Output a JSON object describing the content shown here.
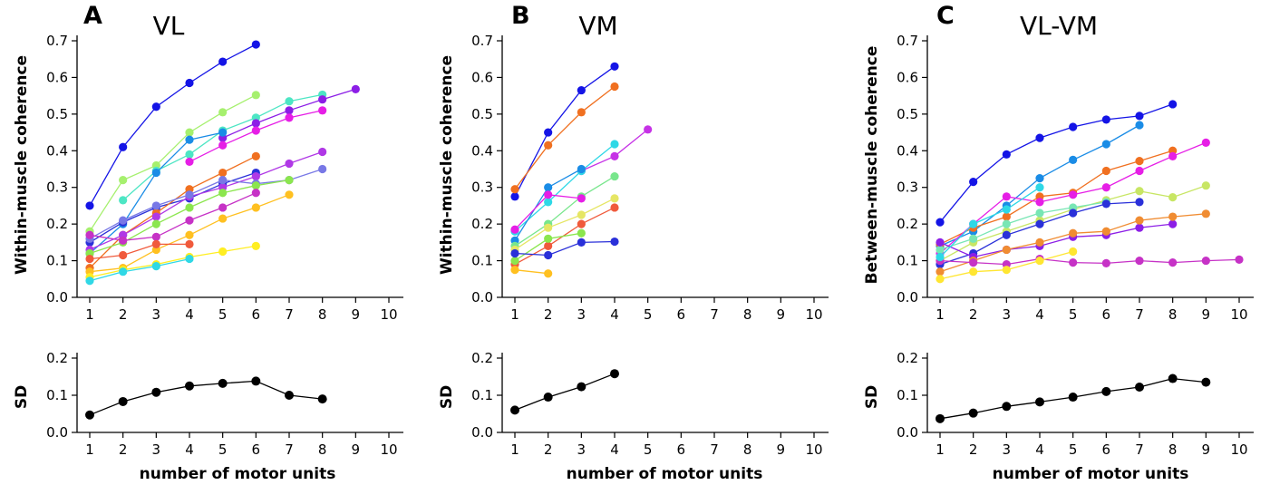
{
  "panels": [
    {
      "letter": "A",
      "title": "VL",
      "ylabel": "Within-muscle coherence",
      "xlabel": "",
      "sd_ylabel": "SD",
      "sd_xlabel": "number of motor units"
    },
    {
      "letter": "B",
      "title": "VM",
      "ylabel": "Within-muscle coherence",
      "xlabel": "",
      "sd_ylabel": "SD",
      "sd_xlabel": "number of motor units"
    },
    {
      "letter": "C",
      "title": "VL-VM",
      "ylabel": "Between-muscle coherence",
      "xlabel": "",
      "sd_ylabel": "SD",
      "sd_xlabel": "number of motor units"
    }
  ],
  "chart_data": [
    {
      "type": "line",
      "panel": "A",
      "role": "coherence",
      "ylabel": "Within-muscle coherence",
      "xlabel": "",
      "xlim": [
        1,
        10
      ],
      "ylim": [
        0,
        0.7
      ],
      "xticks": [
        "1",
        "2",
        "3",
        "4",
        "5",
        "6",
        "7",
        "8",
        "9",
        "10"
      ],
      "yticks": [
        "0.0",
        "0.1",
        "0.2",
        "0.3",
        "0.4",
        "0.5",
        "0.6",
        "0.7"
      ],
      "grid": false,
      "series": [
        {
          "color": "#1414e6",
          "x": [
            1,
            2,
            3,
            4,
            5,
            6
          ],
          "y": [
            0.25,
            0.41,
            0.52,
            0.585,
            0.643,
            0.69
          ]
        },
        {
          "color": "#a6f06e",
          "x": [
            1,
            2,
            3,
            4,
            5,
            6
          ],
          "y": [
            0.18,
            0.32,
            0.36,
            0.45,
            0.505,
            0.552
          ]
        },
        {
          "color": "#4de6c4",
          "x": [
            2,
            3,
            4,
            5,
            6,
            7,
            8
          ],
          "y": [
            0.265,
            0.345,
            0.39,
            0.455,
            0.49,
            0.535,
            0.553
          ]
        },
        {
          "color": "#8c1ee6",
          "x": [
            5,
            6,
            7,
            8,
            9
          ],
          "y": [
            0.435,
            0.475,
            0.51,
            0.54,
            0.568
          ]
        },
        {
          "color": "#e61ee6",
          "x": [
            4,
            5,
            6,
            7,
            8
          ],
          "y": [
            0.37,
            0.415,
            0.455,
            0.49,
            0.51
          ]
        },
        {
          "color": "#1a8ce6",
          "x": [
            1,
            2,
            3,
            4,
            5
          ],
          "y": [
            0.12,
            0.2,
            0.34,
            0.43,
            0.45
          ]
        },
        {
          "color": "#2a30d9",
          "x": [
            1,
            2,
            3,
            4,
            5,
            6
          ],
          "y": [
            0.15,
            0.205,
            0.245,
            0.27,
            0.31,
            0.34
          ]
        },
        {
          "color": "#f07020",
          "x": [
            1,
            2,
            3,
            4,
            5,
            6
          ],
          "y": [
            0.08,
            0.17,
            0.23,
            0.295,
            0.34,
            0.385
          ]
        },
        {
          "color": "#b038e6",
          "x": [
            1,
            2,
            3,
            4,
            5,
            6,
            7,
            8
          ],
          "y": [
            0.13,
            0.17,
            0.22,
            0.275,
            0.3,
            0.33,
            0.365,
            0.397
          ]
        },
        {
          "color": "#7878e6",
          "x": [
            1,
            2,
            3,
            4,
            5,
            6,
            7,
            8
          ],
          "y": [
            0.16,
            0.21,
            0.25,
            0.28,
            0.32,
            0.31,
            0.32,
            0.35
          ]
        },
        {
          "color": "#8be64e",
          "x": [
            1,
            2,
            3,
            4,
            5,
            6,
            7
          ],
          "y": [
            0.12,
            0.15,
            0.2,
            0.245,
            0.285,
            0.305,
            0.32
          ]
        },
        {
          "color": "#c632c6",
          "x": [
            1,
            2,
            3,
            4,
            5,
            6
          ],
          "y": [
            0.17,
            0.155,
            0.165,
            0.21,
            0.245,
            0.285
          ]
        },
        {
          "color": "#ffc020",
          "x": [
            1,
            2,
            3,
            4,
            5,
            6,
            7
          ],
          "y": [
            0.07,
            0.08,
            0.13,
            0.17,
            0.215,
            0.245,
            0.28
          ]
        },
        {
          "color": "#f05a3c",
          "x": [
            1,
            2,
            3,
            4
          ],
          "y": [
            0.105,
            0.115,
            0.145,
            0.145
          ]
        },
        {
          "color": "#ffee22",
          "x": [
            1,
            2,
            3,
            4,
            5,
            6
          ],
          "y": [
            0.055,
            0.075,
            0.09,
            0.11,
            0.125,
            0.14
          ]
        },
        {
          "color": "#30d8e6",
          "x": [
            1,
            2,
            3,
            4
          ],
          "y": [
            0.045,
            0.07,
            0.085,
            0.105
          ]
        }
      ]
    },
    {
      "type": "line",
      "panel": "B",
      "role": "coherence",
      "ylabel": "Within-muscle coherence",
      "xlabel": "",
      "xlim": [
        1,
        10
      ],
      "ylim": [
        0,
        0.7
      ],
      "xticks": [
        "1",
        "2",
        "3",
        "4",
        "5",
        "6",
        "7",
        "8",
        "9",
        "10"
      ],
      "yticks": [
        "0.0",
        "0.1",
        "0.2",
        "0.3",
        "0.4",
        "0.5",
        "0.6",
        "0.7"
      ],
      "grid": false,
      "series": [
        {
          "color": "#1414e6",
          "x": [
            1,
            2,
            3,
            4
          ],
          "y": [
            0.275,
            0.45,
            0.565,
            0.63
          ]
        },
        {
          "color": "#f07020",
          "x": [
            1,
            2,
            3,
            4
          ],
          "y": [
            0.295,
            0.415,
            0.505,
            0.575
          ]
        },
        {
          "color": "#c632e6",
          "x": [
            3,
            4,
            5
          ],
          "y": [
            0.345,
            0.385,
            0.458
          ]
        },
        {
          "color": "#2ed8e6",
          "x": [
            1,
            2,
            3,
            4
          ],
          "y": [
            0.18,
            0.26,
            0.345,
            0.418
          ]
        },
        {
          "color": "#1a8ce6",
          "x": [
            1,
            2,
            3
          ],
          "y": [
            0.155,
            0.3,
            0.35
          ]
        },
        {
          "color": "#78e68c",
          "x": [
            1,
            2,
            3,
            4
          ],
          "y": [
            0.14,
            0.2,
            0.275,
            0.33
          ]
        },
        {
          "color": "#e6e664",
          "x": [
            1,
            2,
            3,
            4
          ],
          "y": [
            0.13,
            0.19,
            0.225,
            0.27
          ]
        },
        {
          "color": "#f05a3c",
          "x": [
            1,
            2,
            3,
            4
          ],
          "y": [
            0.09,
            0.14,
            0.2,
            0.245
          ]
        },
        {
          "color": "#e61ee6",
          "x": [
            1,
            2,
            3
          ],
          "y": [
            0.185,
            0.28,
            0.27
          ]
        },
        {
          "color": "#8be64e",
          "x": [
            1,
            2,
            3
          ],
          "y": [
            0.1,
            0.16,
            0.175
          ]
        },
        {
          "color": "#2a30d9",
          "x": [
            1,
            2,
            3,
            4
          ],
          "y": [
            0.12,
            0.115,
            0.15,
            0.152
          ]
        },
        {
          "color": "#ffc020",
          "x": [
            1,
            2
          ],
          "y": [
            0.075,
            0.065
          ]
        }
      ]
    },
    {
      "type": "line",
      "panel": "C",
      "role": "coherence",
      "ylabel": "Between-muscle coherence",
      "xlabel": "",
      "xlim": [
        1,
        10
      ],
      "ylim": [
        0,
        0.7
      ],
      "xticks": [
        "1",
        "2",
        "3",
        "4",
        "5",
        "6",
        "7",
        "8",
        "9",
        "10"
      ],
      "yticks": [
        "0.0",
        "0.1",
        "0.2",
        "0.3",
        "0.4",
        "0.5",
        "0.6",
        "0.7"
      ],
      "grid": false,
      "series": [
        {
          "color": "#1414e6",
          "x": [
            1,
            2,
            3,
            4,
            5,
            6,
            7,
            8
          ],
          "y": [
            0.205,
            0.315,
            0.39,
            0.435,
            0.465,
            0.485,
            0.495,
            0.527
          ]
        },
        {
          "color": "#1a8ce6",
          "x": [
            1,
            2,
            3,
            4,
            5,
            6,
            7
          ],
          "y": [
            0.14,
            0.18,
            0.25,
            0.325,
            0.375,
            0.418,
            0.47
          ]
        },
        {
          "color": "#f07020",
          "x": [
            1,
            2,
            3,
            4,
            5,
            6,
            7,
            8
          ],
          "y": [
            0.145,
            0.19,
            0.22,
            0.275,
            0.285,
            0.345,
            0.372,
            0.4
          ]
        },
        {
          "color": "#e61ee6",
          "x": [
            1,
            2,
            3,
            4,
            5,
            6,
            7,
            8,
            9
          ],
          "y": [
            0.12,
            0.2,
            0.275,
            0.26,
            0.28,
            0.3,
            0.345,
            0.385,
            0.422
          ]
        },
        {
          "color": "#c8e664",
          "x": [
            1,
            2,
            3,
            4,
            5,
            6,
            7,
            8,
            9
          ],
          "y": [
            0.1,
            0.15,
            0.18,
            0.21,
            0.24,
            0.265,
            0.29,
            0.273,
            0.305
          ]
        },
        {
          "color": "#78e6b4",
          "x": [
            1,
            2,
            3,
            4,
            5,
            6
          ],
          "y": [
            0.13,
            0.16,
            0.2,
            0.23,
            0.245,
            0.26
          ]
        },
        {
          "color": "#2a30d9",
          "x": [
            1,
            2,
            3,
            4,
            5,
            6,
            7
          ],
          "y": [
            0.09,
            0.12,
            0.17,
            0.2,
            0.23,
            0.255,
            0.26
          ]
        },
        {
          "color": "#8c1ee6",
          "x": [
            1,
            2,
            3,
            4,
            5,
            6,
            7,
            8
          ],
          "y": [
            0.15,
            0.11,
            0.13,
            0.14,
            0.165,
            0.17,
            0.19,
            0.2
          ]
        },
        {
          "color": "#f08c32",
          "x": [
            1,
            2,
            3,
            4,
            5,
            6,
            7,
            8,
            9
          ],
          "y": [
            0.07,
            0.1,
            0.13,
            0.15,
            0.175,
            0.18,
            0.21,
            0.22,
            0.228
          ]
        },
        {
          "color": "#c632c6",
          "x": [
            1,
            2,
            3,
            4,
            5,
            6,
            7,
            8,
            9,
            10
          ],
          "y": [
            0.1,
            0.095,
            0.09,
            0.105,
            0.095,
            0.093,
            0.1,
            0.095,
            0.1,
            0.103
          ]
        },
        {
          "color": "#ffe632",
          "x": [
            1,
            2,
            3,
            4,
            5
          ],
          "y": [
            0.05,
            0.07,
            0.075,
            0.1,
            0.125
          ]
        },
        {
          "color": "#2ed8e6",
          "x": [
            1,
            2,
            3,
            4
          ],
          "y": [
            0.11,
            0.2,
            0.24,
            0.3
          ]
        }
      ]
    },
    {
      "type": "line",
      "panel": "A",
      "role": "sd",
      "ylabel": "SD",
      "xlabel": "number of motor units",
      "xlim": [
        1,
        10
      ],
      "ylim": [
        0,
        0.2
      ],
      "xticks": [
        "1",
        "2",
        "3",
        "4",
        "5",
        "6",
        "7",
        "8",
        "9",
        "10"
      ],
      "yticks": [
        "0.0",
        "0.1",
        "0.2"
      ],
      "grid": false,
      "series": [
        {
          "color": "#000000",
          "x": [
            1,
            2,
            3,
            4,
            5,
            6,
            7,
            8
          ],
          "y": [
            0.047,
            0.083,
            0.108,
            0.125,
            0.132,
            0.138,
            0.1,
            0.09
          ]
        }
      ]
    },
    {
      "type": "line",
      "panel": "B",
      "role": "sd",
      "ylabel": "SD",
      "xlabel": "number of motor units",
      "xlim": [
        1,
        10
      ],
      "ylim": [
        0,
        0.2
      ],
      "xticks": [
        "1",
        "2",
        "3",
        "4",
        "5",
        "6",
        "7",
        "8",
        "9",
        "10"
      ],
      "yticks": [
        "0.0",
        "0.1",
        "0.2"
      ],
      "grid": false,
      "series": [
        {
          "color": "#000000",
          "x": [
            1,
            2,
            3,
            4
          ],
          "y": [
            0.06,
            0.095,
            0.123,
            0.158
          ]
        }
      ]
    },
    {
      "type": "line",
      "panel": "C",
      "role": "sd",
      "ylabel": "SD",
      "xlabel": "number of motor units",
      "xlim": [
        1,
        10
      ],
      "ylim": [
        0,
        0.2
      ],
      "xticks": [
        "1",
        "2",
        "3",
        "4",
        "5",
        "6",
        "7",
        "8",
        "9",
        "10"
      ],
      "yticks": [
        "0.0",
        "0.1",
        "0.2"
      ],
      "grid": false,
      "series": [
        {
          "color": "#000000",
          "x": [
            1,
            2,
            3,
            4,
            5,
            6,
            7,
            8,
            9
          ],
          "y": [
            0.037,
            0.052,
            0.07,
            0.082,
            0.095,
            0.11,
            0.122,
            0.145,
            0.135
          ]
        }
      ]
    }
  ]
}
